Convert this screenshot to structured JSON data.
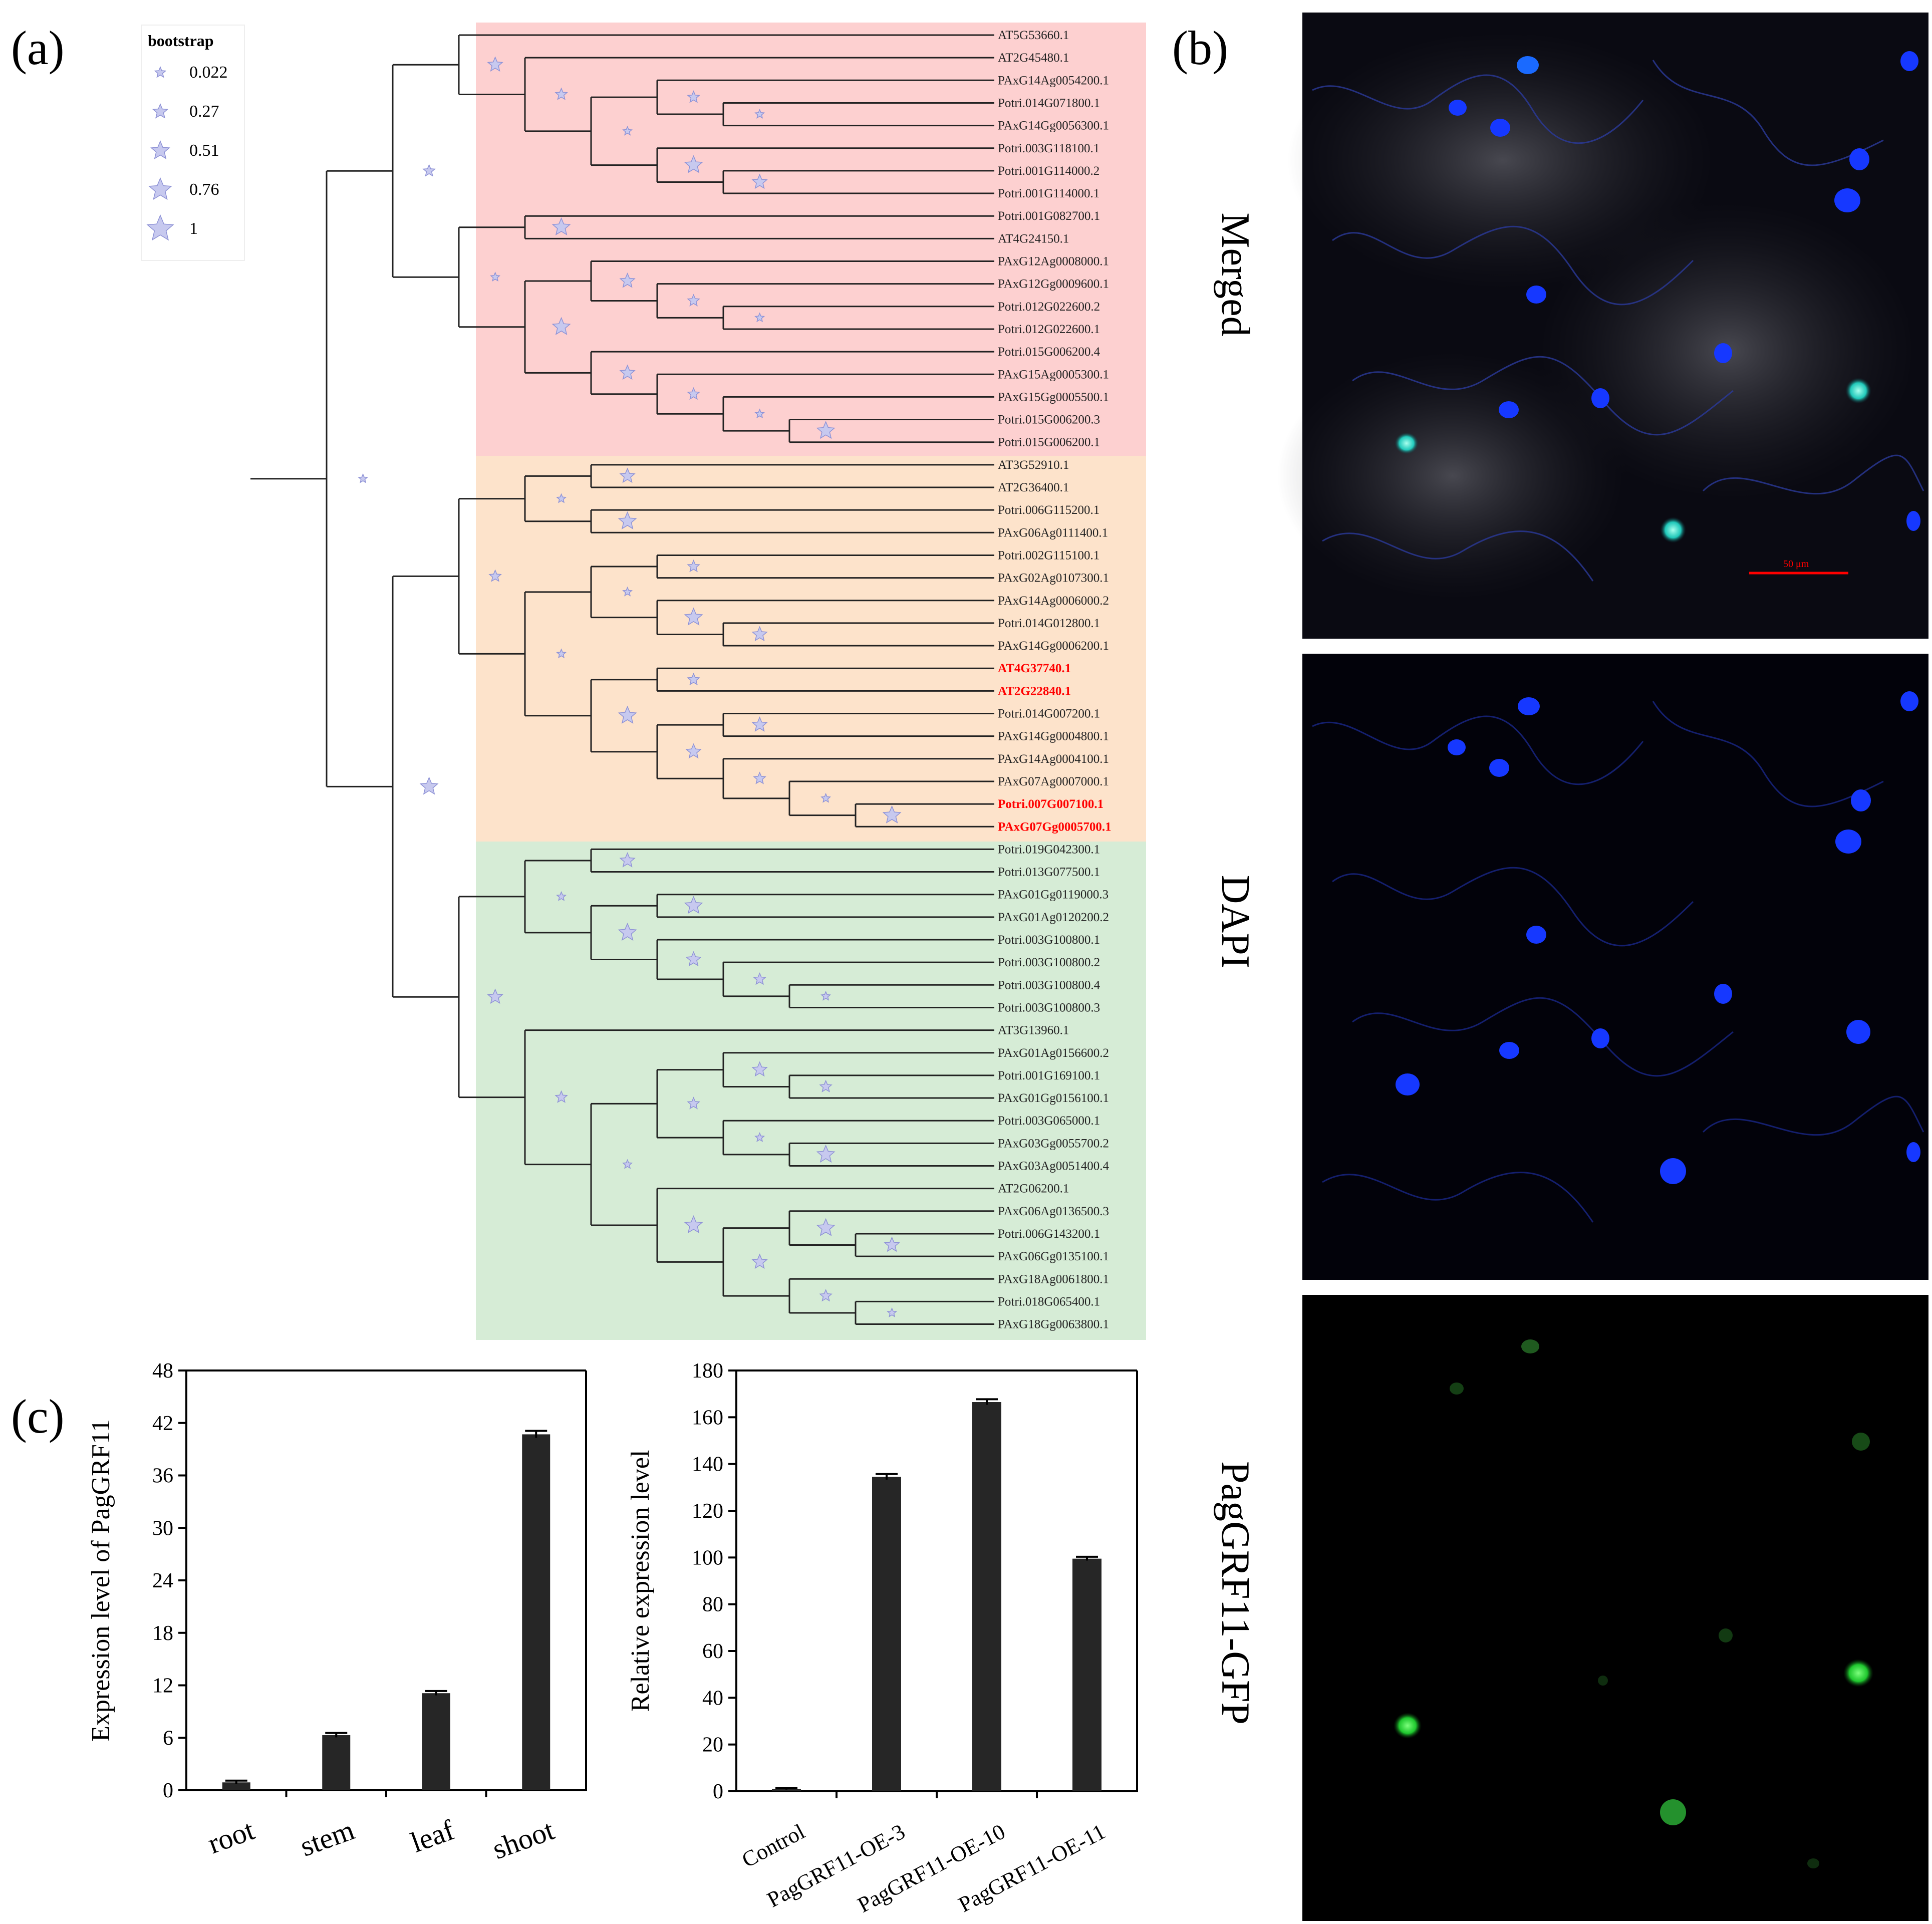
{
  "panel_labels": {
    "a": "(a)",
    "b": "(b)",
    "c": "(c)"
  },
  "legend": {
    "title": "bootstrap",
    "values": [
      "0.022",
      "0.27",
      "0.51",
      "0.76",
      "1"
    ]
  },
  "clade_colors": {
    "red": "#fdd0d0",
    "orange": "#fde3cb",
    "green": "#d6ecd6"
  },
  "highlight_color": "#ff0000",
  "tree_leaves": [
    "AT5G53660.1",
    "AT2G45480.1",
    "PAxG14Ag0054200.1",
    "Potri.014G071800.1",
    "PAxG14Gg0056300.1",
    "Potri.003G118100.1",
    "Potri.001G114000.2",
    "Potri.001G114000.1",
    "Potri.001G082700.1",
    "AT4G24150.1",
    "PAxG12Ag0008000.1",
    "PAxG12Gg0009600.1",
    "Potri.012G022600.2",
    "Potri.012G022600.1",
    "Potri.015G006200.4",
    "PAxG15Ag0005300.1",
    "PAxG15Gg0005500.1",
    "Potri.015G006200.3",
    "Potri.015G006200.1",
    "AT3G52910.1",
    "AT2G36400.1",
    "Potri.006G115200.1",
    "PAxG06Ag0111400.1",
    "Potri.002G115100.1",
    "PAxG02Ag0107300.1",
    "PAxG14Ag0006000.2",
    "Potri.014G012800.1",
    "PAxG14Gg0006200.1",
    "AT4G37740.1",
    "AT2G22840.1",
    "Potri.014G007200.1",
    "PAxG14Gg0004800.1",
    "PAxG14Ag0004100.1",
    "PAxG07Ag0007000.1",
    "Potri.007G007100.1",
    "PAxG07Gg0005700.1",
    "Potri.019G042300.1",
    "Potri.013G077500.1",
    "PAxG01Gg0119000.3",
    "PAxG01Ag0120200.2",
    "Potri.003G100800.1",
    "Potri.003G100800.2",
    "Potri.003G100800.4",
    "Potri.003G100800.3",
    "AT3G13960.1",
    "PAxG01Ag0156600.2",
    "Potri.001G169100.1",
    "PAxG01Gg0156100.1",
    "Potri.003G065000.1",
    "PAxG03Gg0055700.2",
    "PAxG03Ag0051400.4",
    "AT2G06200.1",
    "PAxG06Ag0136500.3",
    "Potri.006G143200.1",
    "PAxG06Gg0135100.1",
    "PAxG18Ag0061800.1",
    "Potri.018G065400.1",
    "PAxG18Gg0063800.1"
  ],
  "highlighted_leaves": [
    28,
    29,
    34,
    35
  ],
  "microscopy": {
    "labels": [
      "Merged",
      "DAPI",
      "PagGRF11-GFP"
    ],
    "scale_bar": "50 μm",
    "channel_colors": {
      "dapi": "#1a3cff",
      "gfp": "#22ee44",
      "merged_gfp": "#33ffdd"
    }
  },
  "chart_data": [
    {
      "type": "bar",
      "categories": [
        "root",
        "stem",
        "leaf",
        "shoot"
      ],
      "values": [
        0.9,
        6.3,
        11.1,
        40.7
      ],
      "errors": [
        0.2,
        0.25,
        0.25,
        0.4
      ],
      "ylabel": "Expression level of  PagGRF11",
      "xlabel": "",
      "ylim": [
        0,
        48
      ],
      "yticks": [
        "0",
        "6",
        "12",
        "18",
        "24",
        "30",
        "36",
        "42",
        "48"
      ],
      "bar_color": "#262626"
    },
    {
      "type": "bar",
      "categories": [
        "Control",
        "PagGRF11-OE-3",
        "PagGRF11-OE-10",
        "PagGRF11-OE-11"
      ],
      "values": [
        1,
        134.5,
        166.5,
        99.5
      ],
      "errors": [
        0.3,
        1.2,
        1.2,
        0.8
      ],
      "ylabel": "Relative expression level",
      "xlabel": "",
      "ylim": [
        0,
        180
      ],
      "yticks": [
        "0",
        "20",
        "40",
        "60",
        "80",
        "100",
        "120",
        "140",
        "160",
        "180"
      ],
      "bar_color": "#262626"
    }
  ]
}
